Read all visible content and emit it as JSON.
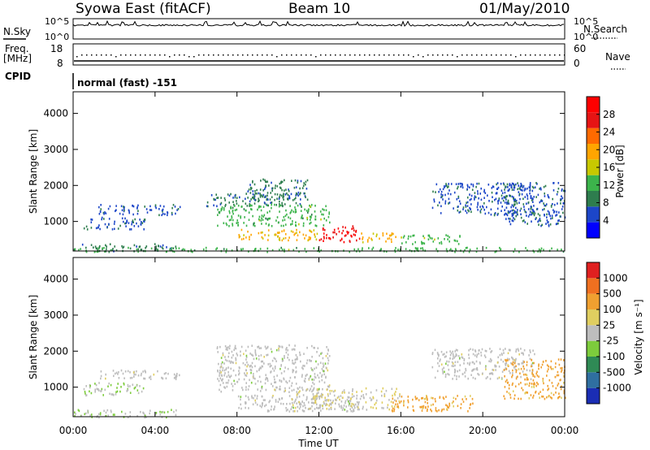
{
  "header": {
    "title": "Syowa East (fitACF)",
    "beam": "Beam 10",
    "date": "01/May/2010"
  },
  "top_panel": {
    "nsky_label": "N.Sky",
    "nsearch_label": "N.Search",
    "nave_label": "Nave",
    "freq_label": "Freq.",
    "freq_unit": "[MHz]",
    "cpid_label": "CPID",
    "cpid_text": "normal (fast) -151",
    "noise_ticks": [
      "10^5",
      "10^0"
    ],
    "freq_ticks": [
      "18",
      "8"
    ],
    "nave_ticks": [
      "60",
      "0"
    ]
  },
  "axes": {
    "xlabel": "Time UT",
    "x_ticks": [
      "00:00",
      "04:00",
      "08:00",
      "12:00",
      "16:00",
      "20:00",
      "00:00"
    ],
    "ylabel": "Slant Range [km]",
    "y_ticks": [
      "4000",
      "3000",
      "2000",
      "1000"
    ]
  },
  "colorbars": {
    "power": {
      "label": "Power [dB]",
      "ticks": [
        "28",
        "24",
        "20",
        "16",
        "12",
        "8",
        "4"
      ],
      "colors": [
        "#0000ff",
        "#1c46c8",
        "#2e7d4e",
        "#3cb44b",
        "#c8c800",
        "#ffa500",
        "#ff6a00",
        "#e61414",
        "#ff0000"
      ]
    },
    "velocity": {
      "label": "Velocity [m s⁻¹]",
      "ticks": [
        "1000",
        "500",
        "100",
        "25",
        "-25",
        "-100",
        "-500",
        "-1000"
      ],
      "colors": [
        "#1a2db4",
        "#2f6fa0",
        "#2f8a55",
        "#7dcc3c",
        "#bdbdbd",
        "#e0ce60",
        "#f0a030",
        "#f07020",
        "#e02020"
      ]
    }
  },
  "chart_data": [
    {
      "type": "heatmap",
      "title": "Power",
      "xlabel": "Time UT",
      "ylabel": "Slant Range [km]",
      "x_range": [
        "00:00",
        "24:00"
      ],
      "ylim": [
        180,
        4600
      ],
      "colorbar_label": "Power [dB]",
      "colorbar_range": [
        0,
        31
      ],
      "regions": [
        {
          "t_start": 0.0,
          "t_end": 5.0,
          "r_min": 180,
          "r_max": 400,
          "value": 8
        },
        {
          "t_start": 0.5,
          "t_end": 3.5,
          "r_min": 800,
          "r_max": 1150,
          "value": 6
        },
        {
          "t_start": 1.2,
          "t_end": 5.2,
          "r_min": 1200,
          "r_max": 1500,
          "value": 6
        },
        {
          "t_start": 6.5,
          "t_end": 10.5,
          "r_min": 1450,
          "r_max": 1800,
          "value": 8
        },
        {
          "t_start": 8.5,
          "t_end": 11.5,
          "r_min": 1500,
          "r_max": 2200,
          "value": 8
        },
        {
          "t_start": 7.0,
          "t_end": 12.5,
          "r_min": 900,
          "r_max": 1500,
          "value": 12
        },
        {
          "t_start": 8.0,
          "t_end": 12.0,
          "r_min": 500,
          "r_max": 800,
          "value": 18
        },
        {
          "t_start": 12.0,
          "t_end": 14.0,
          "r_min": 450,
          "r_max": 900,
          "value": 28
        },
        {
          "t_start": 14.0,
          "t_end": 16.0,
          "r_min": 450,
          "r_max": 700,
          "value": 18
        },
        {
          "t_start": 16.0,
          "t_end": 19.0,
          "r_min": 400,
          "r_max": 650,
          "value": 12
        },
        {
          "t_start": 17.5,
          "t_end": 22.5,
          "r_min": 1200,
          "r_max": 2100,
          "value": 6
        },
        {
          "t_start": 21.0,
          "t_end": 24.0,
          "r_min": 900,
          "r_max": 2100,
          "value": 6
        },
        {
          "t_start": 0.0,
          "t_end": 24.0,
          "r_min": 180,
          "r_max": 300,
          "value": 12
        }
      ]
    },
    {
      "type": "heatmap",
      "title": "Velocity",
      "xlabel": "Time UT",
      "ylabel": "Slant Range [km]",
      "x_range": [
        "00:00",
        "24:00"
      ],
      "ylim": [
        180,
        4600
      ],
      "colorbar_label": "Velocity [m s⁻¹]",
      "colorbar_range": [
        -1200,
        1200
      ],
      "regions": [
        {
          "t_start": 0.0,
          "t_end": 5.0,
          "r_min": 180,
          "r_max": 400,
          "value": -100
        },
        {
          "t_start": 0.5,
          "t_end": 3.5,
          "r_min": 800,
          "r_max": 1150,
          "value": -100
        },
        {
          "t_start": 1.2,
          "t_end": 5.2,
          "r_min": 1250,
          "r_max": 1500,
          "value": 0
        },
        {
          "t_start": 7.0,
          "t_end": 12.5,
          "r_min": 900,
          "r_max": 2200,
          "value": 0
        },
        {
          "t_start": 8.0,
          "t_end": 14.0,
          "r_min": 350,
          "r_max": 800,
          "value": 0
        },
        {
          "t_start": 10.5,
          "t_end": 16.0,
          "r_min": 400,
          "r_max": 1000,
          "value": 100
        },
        {
          "t_start": 15.5,
          "t_end": 19.5,
          "r_min": 350,
          "r_max": 800,
          "value": 500
        },
        {
          "t_start": 17.5,
          "t_end": 22.5,
          "r_min": 1250,
          "r_max": 2100,
          "value": 0
        },
        {
          "t_start": 21.0,
          "t_end": 24.0,
          "r_min": 700,
          "r_max": 1800,
          "value": 500
        }
      ]
    }
  ]
}
